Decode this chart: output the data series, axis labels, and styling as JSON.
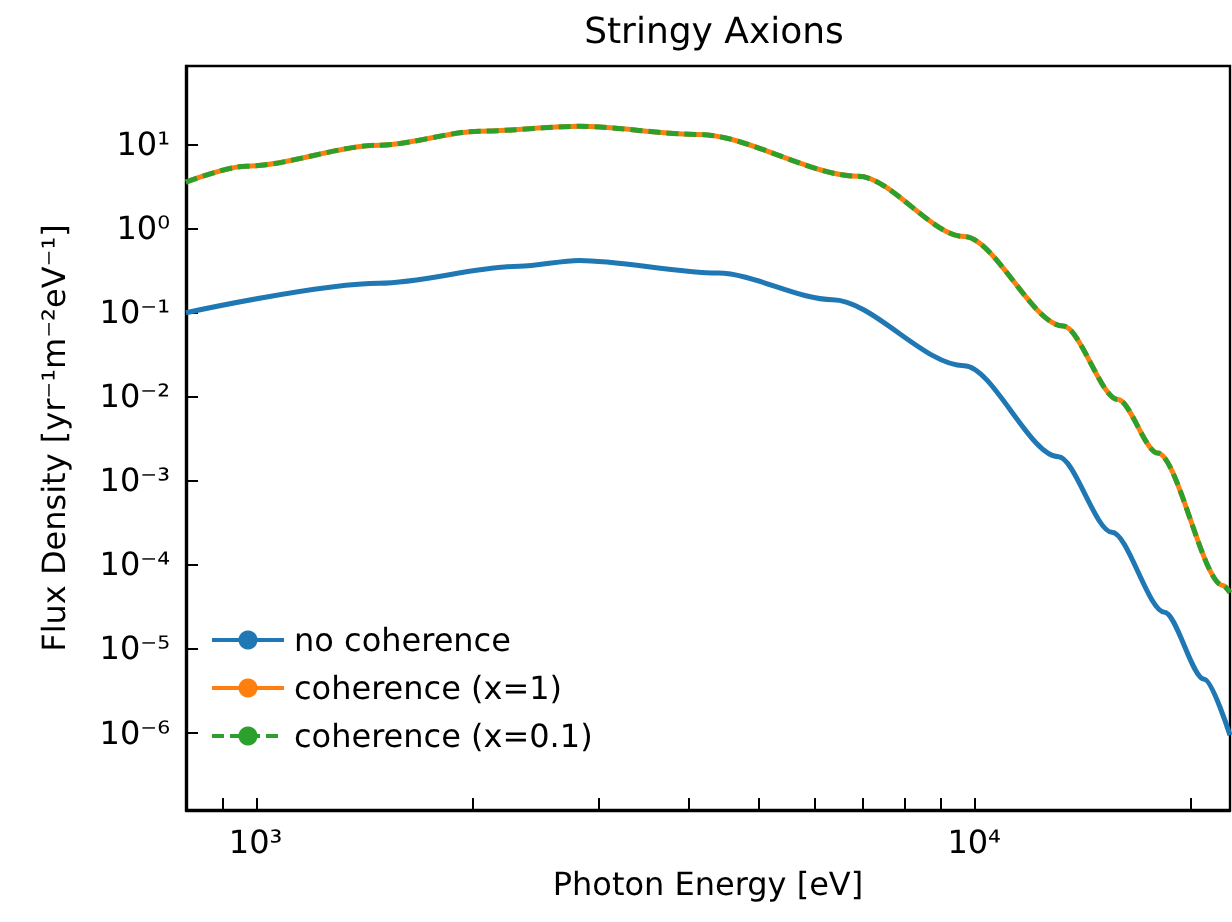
{
  "chart_data": {
    "type": "line",
    "title": "Stringy Axions",
    "xlabel": "Photon Energy [eV]",
    "ylabel": "Flux Density [yr⁻¹m⁻²eV⁻¹]",
    "log": "xy",
    "grid": false,
    "legend": "bottom left",
    "marker": "none",
    "xlim": [
      800,
      22700
    ],
    "ylim": [
      1.2e-07,
      84
    ],
    "xticks": [
      {
        "value": 900,
        "label": null
      },
      {
        "value": 1000,
        "label": "10³"
      },
      {
        "value": 2000,
        "label": null
      },
      {
        "value": 3000,
        "label": null
      },
      {
        "value": 4000,
        "label": null
      },
      {
        "value": 5000,
        "label": null
      },
      {
        "value": 6000,
        "label": null
      },
      {
        "value": 7000,
        "label": null
      },
      {
        "value": 8000,
        "label": null
      },
      {
        "value": 9000,
        "label": null
      },
      {
        "value": 10000,
        "label": "10⁴"
      },
      {
        "value": 20000,
        "label": null
      }
    ],
    "yticks": [
      {
        "value": 1e-06,
        "label": "10⁻⁶"
      },
      {
        "value": 1e-05,
        "label": "10⁻⁵"
      },
      {
        "value": 0.0001,
        "label": "10⁻⁴"
      },
      {
        "value": 0.001,
        "label": "10⁻³"
      },
      {
        "value": 0.01,
        "label": "10⁻²"
      },
      {
        "value": 0.1,
        "label": "10⁻¹"
      },
      {
        "value": 1,
        "label": "10⁰"
      },
      {
        "value": 10,
        "label": "10¹"
      }
    ],
    "series": [
      {
        "name": "no coherence",
        "color": "#1f77b4",
        "line_style": "solid",
        "x": [
          800,
          1487,
          2327,
          2820,
          4400,
          6350,
          9680,
          13100,
          15550,
          18400,
          20900,
          22700
        ],
        "values": [
          0.098,
          0.22,
          0.35,
          0.41,
          0.29,
          0.14,
          0.023,
          0.0019,
          0.00024,
          2.7e-05,
          4.3e-06,
          9.3e-07
        ]
      },
      {
        "name": "coherence (x=1)",
        "color": "#ff7f0e",
        "line_style": "solid",
        "x": [
          800,
          968,
          1487,
          2048,
          2820,
          4140,
          6900,
          9680,
          13300,
          15850,
          18000,
          22200,
          22700
        ],
        "values": [
          3.5,
          5.4,
          9.6,
          14.1,
          16.1,
          12.9,
          4.1,
          0.79,
          0.068,
          0.0091,
          0.0021,
          5.6e-05,
          4.6e-05
        ]
      },
      {
        "name": "coherence (x=0.1)",
        "color": "#2ca02c",
        "line_style": "dashed",
        "x": [
          800,
          968,
          1487,
          2048,
          2820,
          4140,
          6900,
          9680,
          13300,
          15850,
          18000,
          22200,
          22700
        ],
        "values": [
          3.5,
          5.4,
          9.6,
          14.1,
          16.1,
          12.9,
          4.1,
          0.79,
          0.068,
          0.0091,
          0.0021,
          5.6e-05,
          4.6e-05
        ]
      }
    ]
  }
}
